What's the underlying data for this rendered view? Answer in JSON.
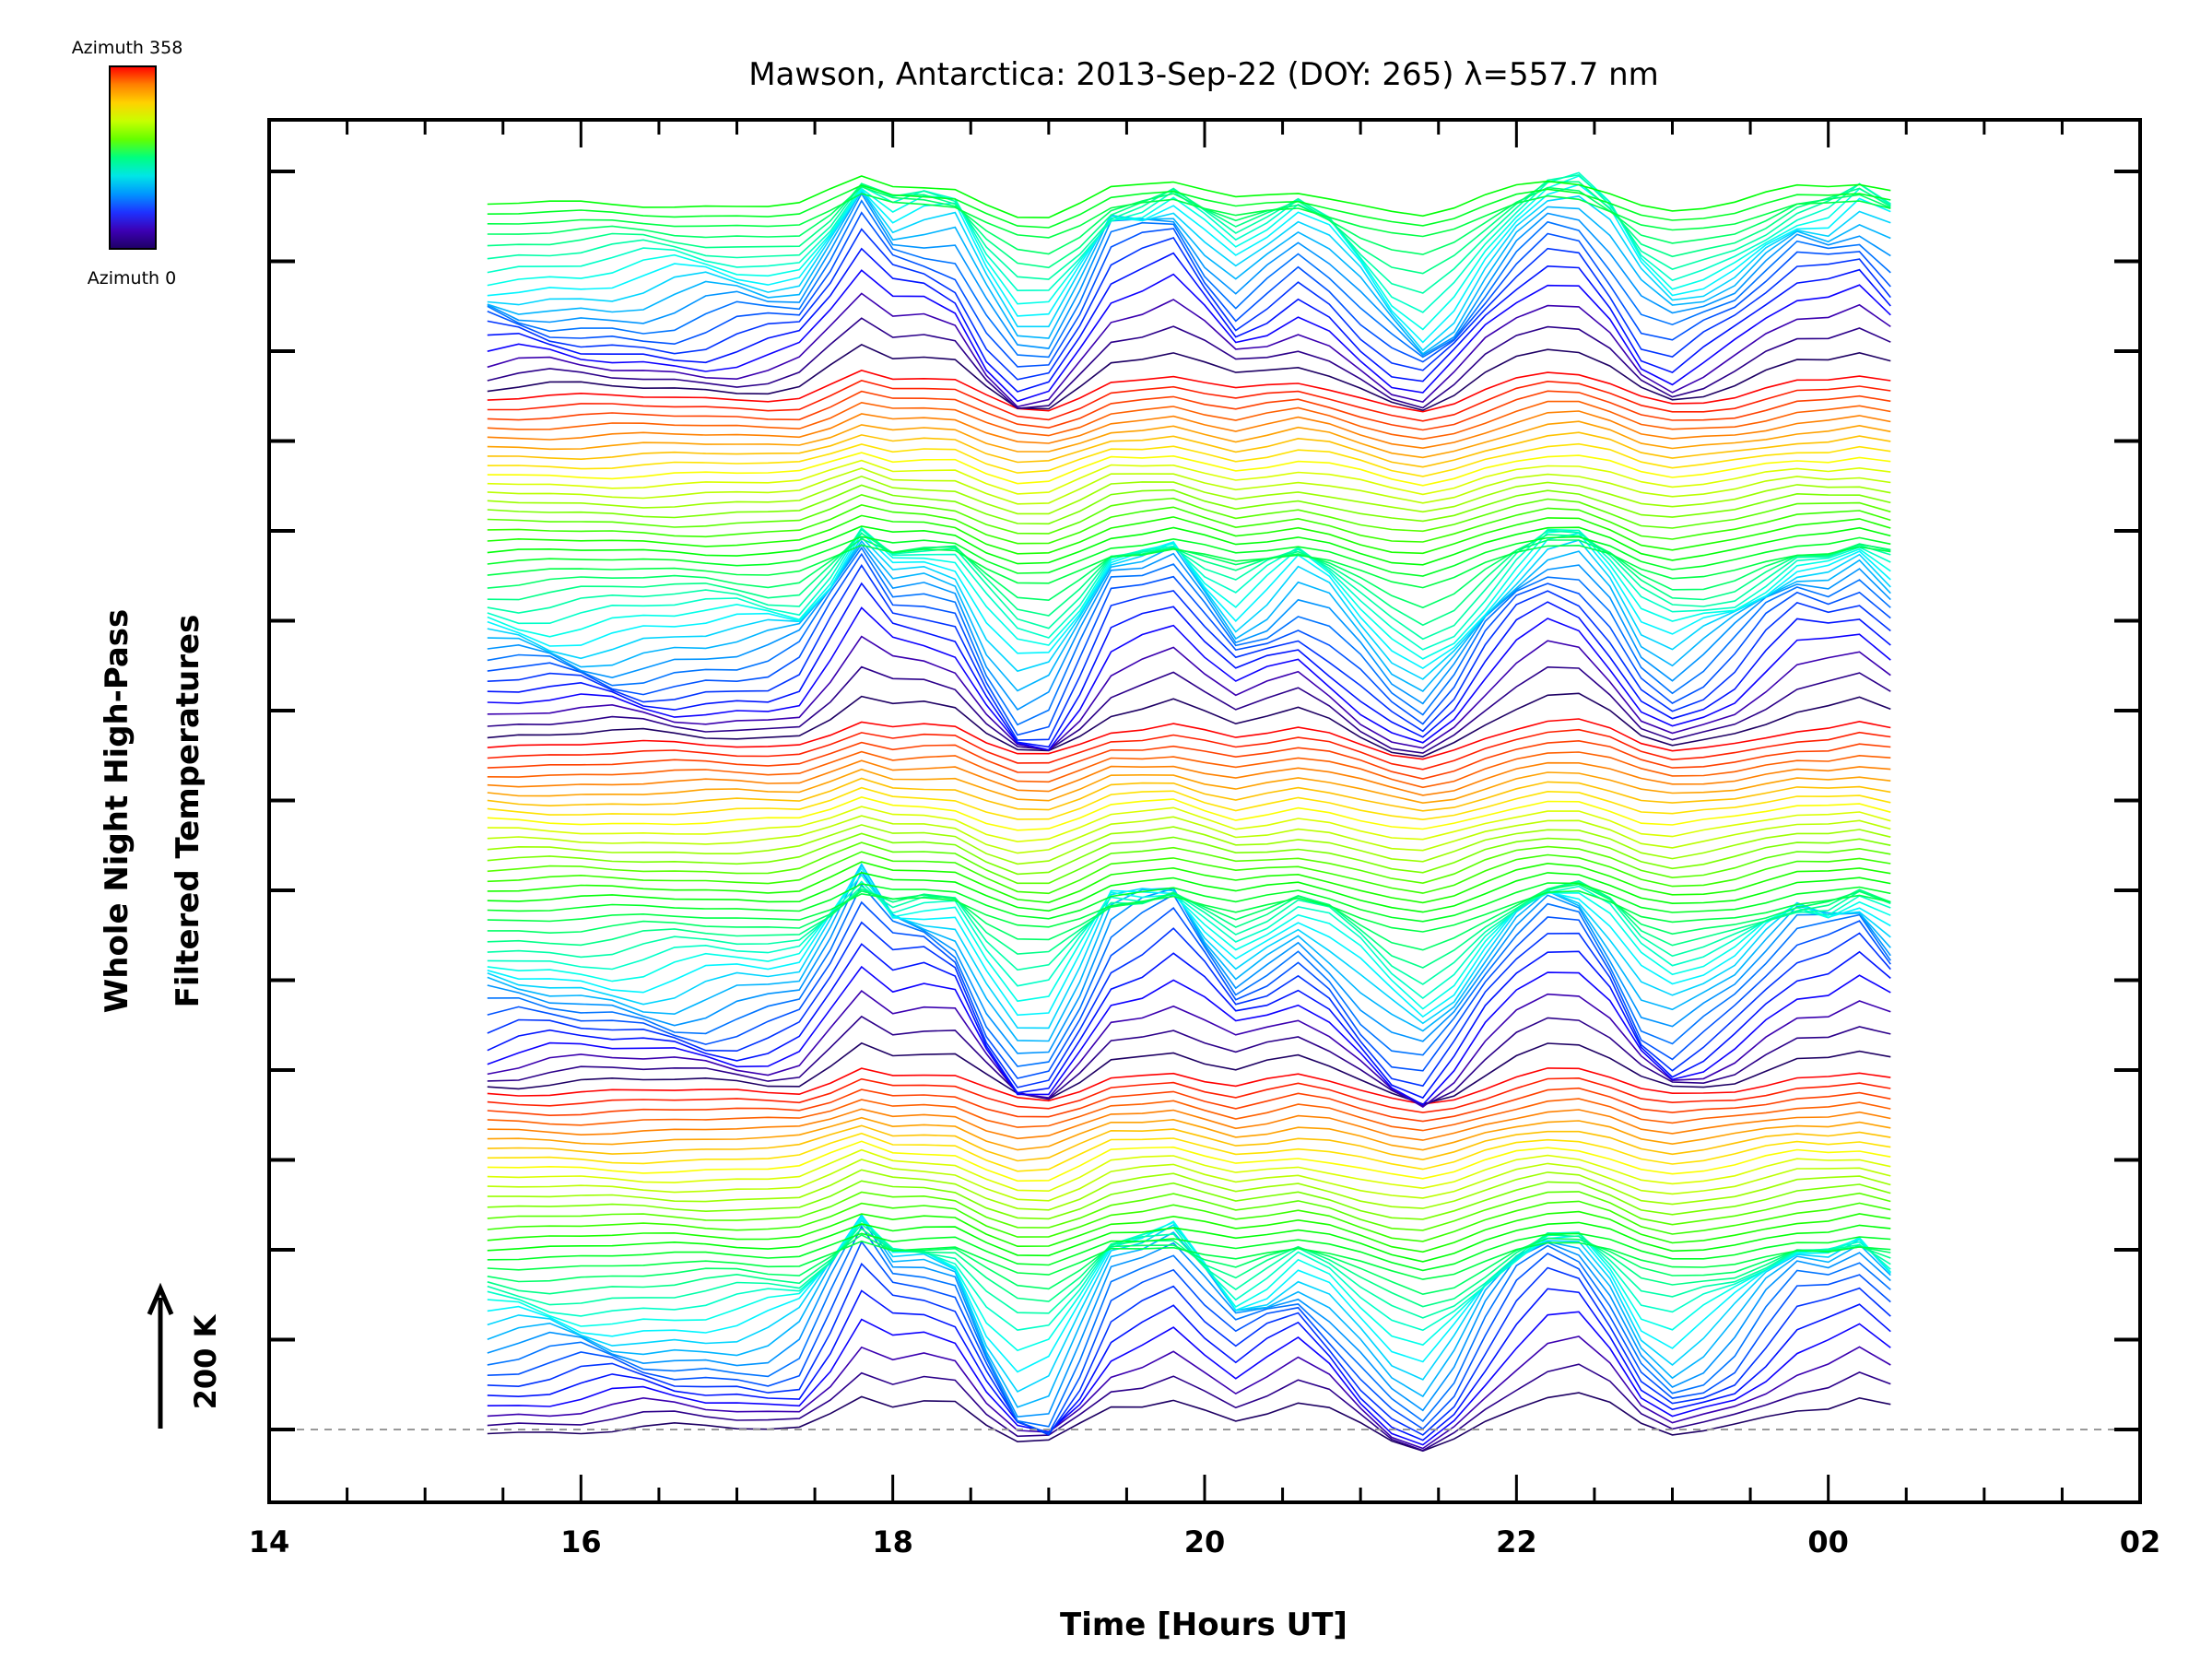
{
  "chart_data": {
    "type": "line",
    "title": "Mawson, Antarctica: 2013-Sep-22 (DOY: 265) λ=557.7 nm",
    "xlabel": "Time [Hours UT]",
    "ylabel_line1": "Whole Night High-Pass",
    "ylabel_line2": "Filtered Temperatures",
    "x_ticks": [
      "14",
      "16",
      "18",
      "20",
      "22",
      "00",
      "02"
    ],
    "xlim": [
      14,
      26
    ],
    "scale_bar_label": "200 K",
    "colorbar": {
      "top_label": "Azimuth  358",
      "bottom_label": "Azimuth  0",
      "colors": [
        "#ff0000",
        "#ff8000",
        "#ffd200",
        "#c8ff00",
        "#64ff00",
        "#00ff80",
        "#00e6e6",
        "#0096ff",
        "#1e32ff",
        "#3c00b4",
        "#1e0064"
      ]
    },
    "series_count": 128,
    "series_time_range": [
      15.4,
      24.4
    ],
    "baseline_dashed": true,
    "grid": false
  }
}
